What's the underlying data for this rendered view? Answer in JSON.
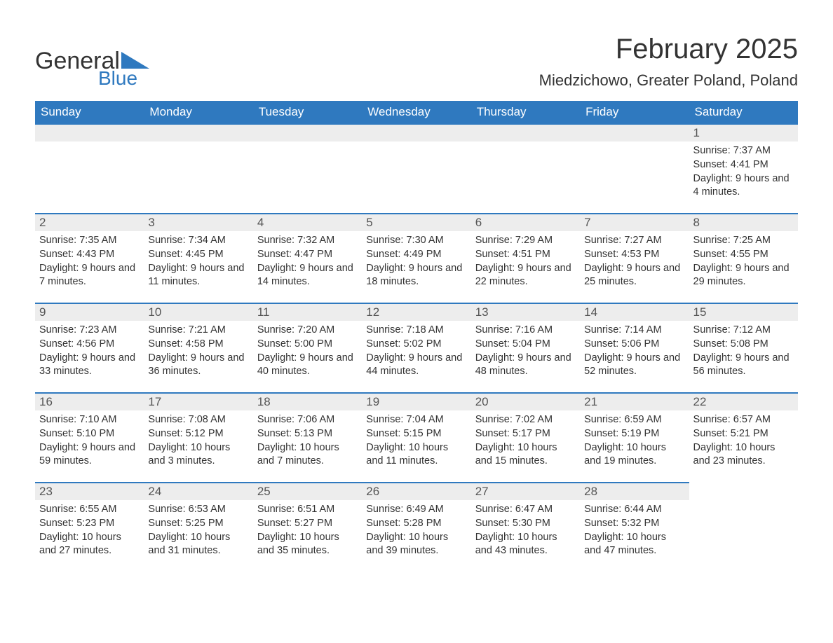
{
  "logo": {
    "general": "General",
    "blue": "Blue",
    "accent_color": "#2f79bf"
  },
  "title": "February 2025",
  "location": "Miedzichowo, Greater Poland, Poland",
  "columns": [
    "Sunday",
    "Monday",
    "Tuesday",
    "Wednesday",
    "Thursday",
    "Friday",
    "Saturday"
  ],
  "header_bg": "#2f79bf",
  "header_fg": "#ffffff",
  "daybar_bg": "#ededed",
  "daybar_border": "#2f79bf",
  "text_color": "#333333",
  "weeks": [
    [
      null,
      null,
      null,
      null,
      null,
      null,
      {
        "n": "1",
        "sunrise": "7:37 AM",
        "sunset": "4:41 PM",
        "daylight": "9 hours and 4 minutes."
      }
    ],
    [
      {
        "n": "2",
        "sunrise": "7:35 AM",
        "sunset": "4:43 PM",
        "daylight": "9 hours and 7 minutes."
      },
      {
        "n": "3",
        "sunrise": "7:34 AM",
        "sunset": "4:45 PM",
        "daylight": "9 hours and 11 minutes."
      },
      {
        "n": "4",
        "sunrise": "7:32 AM",
        "sunset": "4:47 PM",
        "daylight": "9 hours and 14 minutes."
      },
      {
        "n": "5",
        "sunrise": "7:30 AM",
        "sunset": "4:49 PM",
        "daylight": "9 hours and 18 minutes."
      },
      {
        "n": "6",
        "sunrise": "7:29 AM",
        "sunset": "4:51 PM",
        "daylight": "9 hours and 22 minutes."
      },
      {
        "n": "7",
        "sunrise": "7:27 AM",
        "sunset": "4:53 PM",
        "daylight": "9 hours and 25 minutes."
      },
      {
        "n": "8",
        "sunrise": "7:25 AM",
        "sunset": "4:55 PM",
        "daylight": "9 hours and 29 minutes."
      }
    ],
    [
      {
        "n": "9",
        "sunrise": "7:23 AM",
        "sunset": "4:56 PM",
        "daylight": "9 hours and 33 minutes."
      },
      {
        "n": "10",
        "sunrise": "7:21 AM",
        "sunset": "4:58 PM",
        "daylight": "9 hours and 36 minutes."
      },
      {
        "n": "11",
        "sunrise": "7:20 AM",
        "sunset": "5:00 PM",
        "daylight": "9 hours and 40 minutes."
      },
      {
        "n": "12",
        "sunrise": "7:18 AM",
        "sunset": "5:02 PM",
        "daylight": "9 hours and 44 minutes."
      },
      {
        "n": "13",
        "sunrise": "7:16 AM",
        "sunset": "5:04 PM",
        "daylight": "9 hours and 48 minutes."
      },
      {
        "n": "14",
        "sunrise": "7:14 AM",
        "sunset": "5:06 PM",
        "daylight": "9 hours and 52 minutes."
      },
      {
        "n": "15",
        "sunrise": "7:12 AM",
        "sunset": "5:08 PM",
        "daylight": "9 hours and 56 minutes."
      }
    ],
    [
      {
        "n": "16",
        "sunrise": "7:10 AM",
        "sunset": "5:10 PM",
        "daylight": "9 hours and 59 minutes."
      },
      {
        "n": "17",
        "sunrise": "7:08 AM",
        "sunset": "5:12 PM",
        "daylight": "10 hours and 3 minutes."
      },
      {
        "n": "18",
        "sunrise": "7:06 AM",
        "sunset": "5:13 PM",
        "daylight": "10 hours and 7 minutes."
      },
      {
        "n": "19",
        "sunrise": "7:04 AM",
        "sunset": "5:15 PM",
        "daylight": "10 hours and 11 minutes."
      },
      {
        "n": "20",
        "sunrise": "7:02 AM",
        "sunset": "5:17 PM",
        "daylight": "10 hours and 15 minutes."
      },
      {
        "n": "21",
        "sunrise": "6:59 AM",
        "sunset": "5:19 PM",
        "daylight": "10 hours and 19 minutes."
      },
      {
        "n": "22",
        "sunrise": "6:57 AM",
        "sunset": "5:21 PM",
        "daylight": "10 hours and 23 minutes."
      }
    ],
    [
      {
        "n": "23",
        "sunrise": "6:55 AM",
        "sunset": "5:23 PM",
        "daylight": "10 hours and 27 minutes."
      },
      {
        "n": "24",
        "sunrise": "6:53 AM",
        "sunset": "5:25 PM",
        "daylight": "10 hours and 31 minutes."
      },
      {
        "n": "25",
        "sunrise": "6:51 AM",
        "sunset": "5:27 PM",
        "daylight": "10 hours and 35 minutes."
      },
      {
        "n": "26",
        "sunrise": "6:49 AM",
        "sunset": "5:28 PM",
        "daylight": "10 hours and 39 minutes."
      },
      {
        "n": "27",
        "sunrise": "6:47 AM",
        "sunset": "5:30 PM",
        "daylight": "10 hours and 43 minutes."
      },
      {
        "n": "28",
        "sunrise": "6:44 AM",
        "sunset": "5:32 PM",
        "daylight": "10 hours and 47 minutes."
      },
      null
    ]
  ],
  "labels": {
    "sunrise": "Sunrise: ",
    "sunset": "Sunset: ",
    "daylight": "Daylight: "
  }
}
